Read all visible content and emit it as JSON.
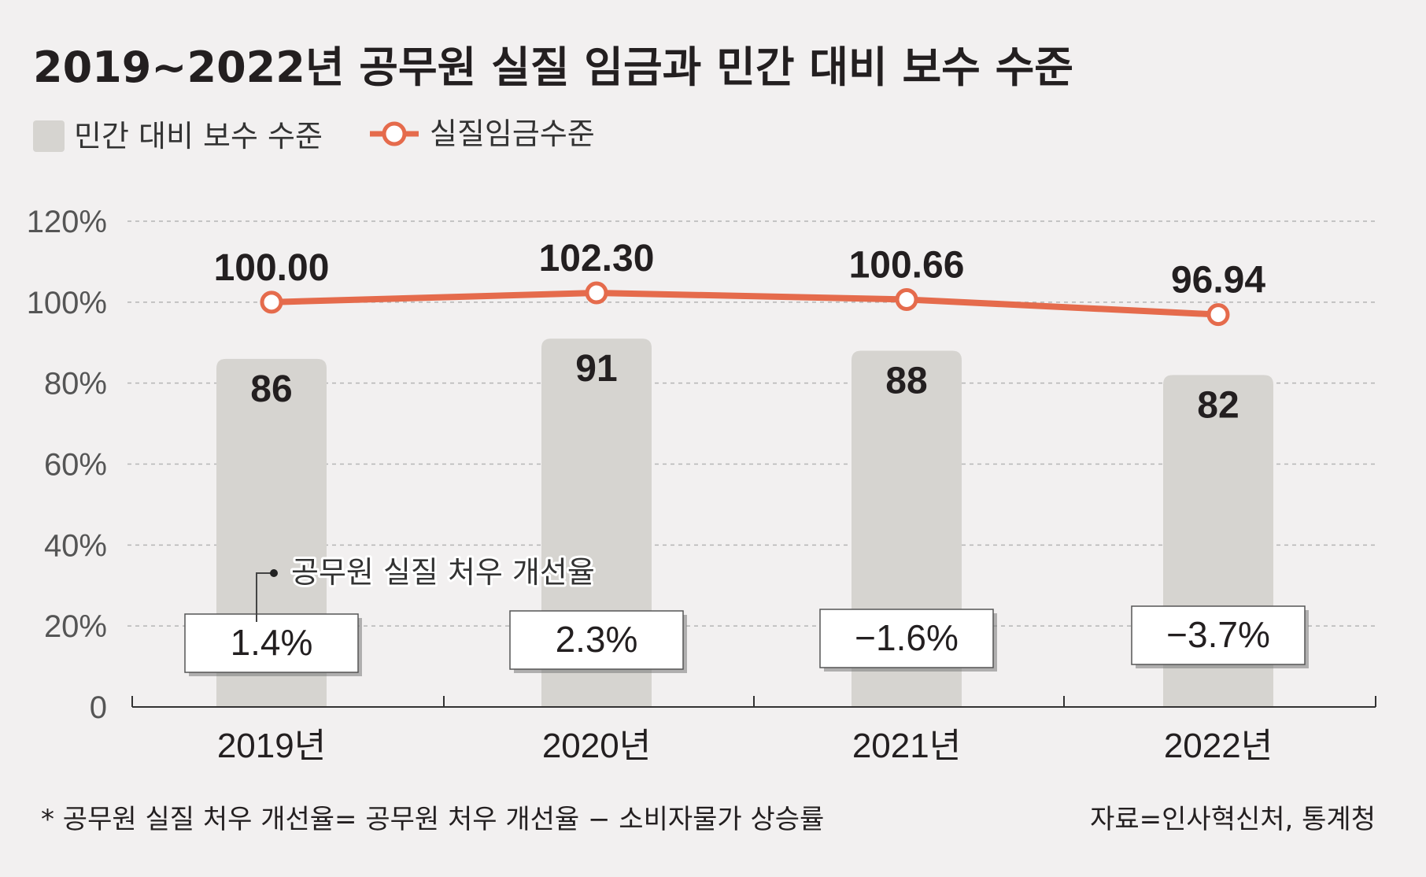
{
  "title": "2019~2022년 공무원 실질 임금과 민간 대비 보수 수준",
  "legend": {
    "bar_label": "민간 대비 보수 수준",
    "line_label": "실질임금수준"
  },
  "callout_label": "공무원 실질 처우 개선율",
  "footnote": "* 공무원 실질 처우 개선율= 공무원 처우 개선율 − 소비자물가 상승률",
  "source": "자료=인사혁신처, 통계청",
  "colors": {
    "background": "#f2f0f0",
    "bar": "#d6d4d0",
    "line": "#e56b4c",
    "text": "#231f20",
    "axis_text": "#555555",
    "grid": "#b5b5b5"
  },
  "chart_data": {
    "type": "bar",
    "categories": [
      "2019년",
      "2020년",
      "2021년",
      "2022년"
    ],
    "ylim": [
      0,
      120
    ],
    "y_ticks": [
      0,
      20,
      40,
      60,
      80,
      100,
      120
    ],
    "y_tick_labels": [
      "0",
      "20%",
      "40%",
      "60%",
      "80%",
      "100%",
      "120%"
    ],
    "grid": true,
    "series": [
      {
        "name": "민간 대비 보수 수준",
        "type": "bar",
        "values": [
          86,
          91,
          88,
          82
        ],
        "labels": [
          "86",
          "91",
          "88",
          "82"
        ]
      },
      {
        "name": "실질임금수준",
        "type": "line",
        "values": [
          100.0,
          102.3,
          100.66,
          96.94
        ],
        "labels": [
          "100.00",
          "102.30",
          "100.66",
          "96.94"
        ]
      },
      {
        "name": "공무원 실질 처우 개선율",
        "type": "annotation",
        "values": [
          1.4,
          2.3,
          -1.6,
          -3.7
        ],
        "labels": [
          "1.4%",
          "2.3%",
          "−1.6%",
          "−3.7%"
        ]
      }
    ]
  }
}
